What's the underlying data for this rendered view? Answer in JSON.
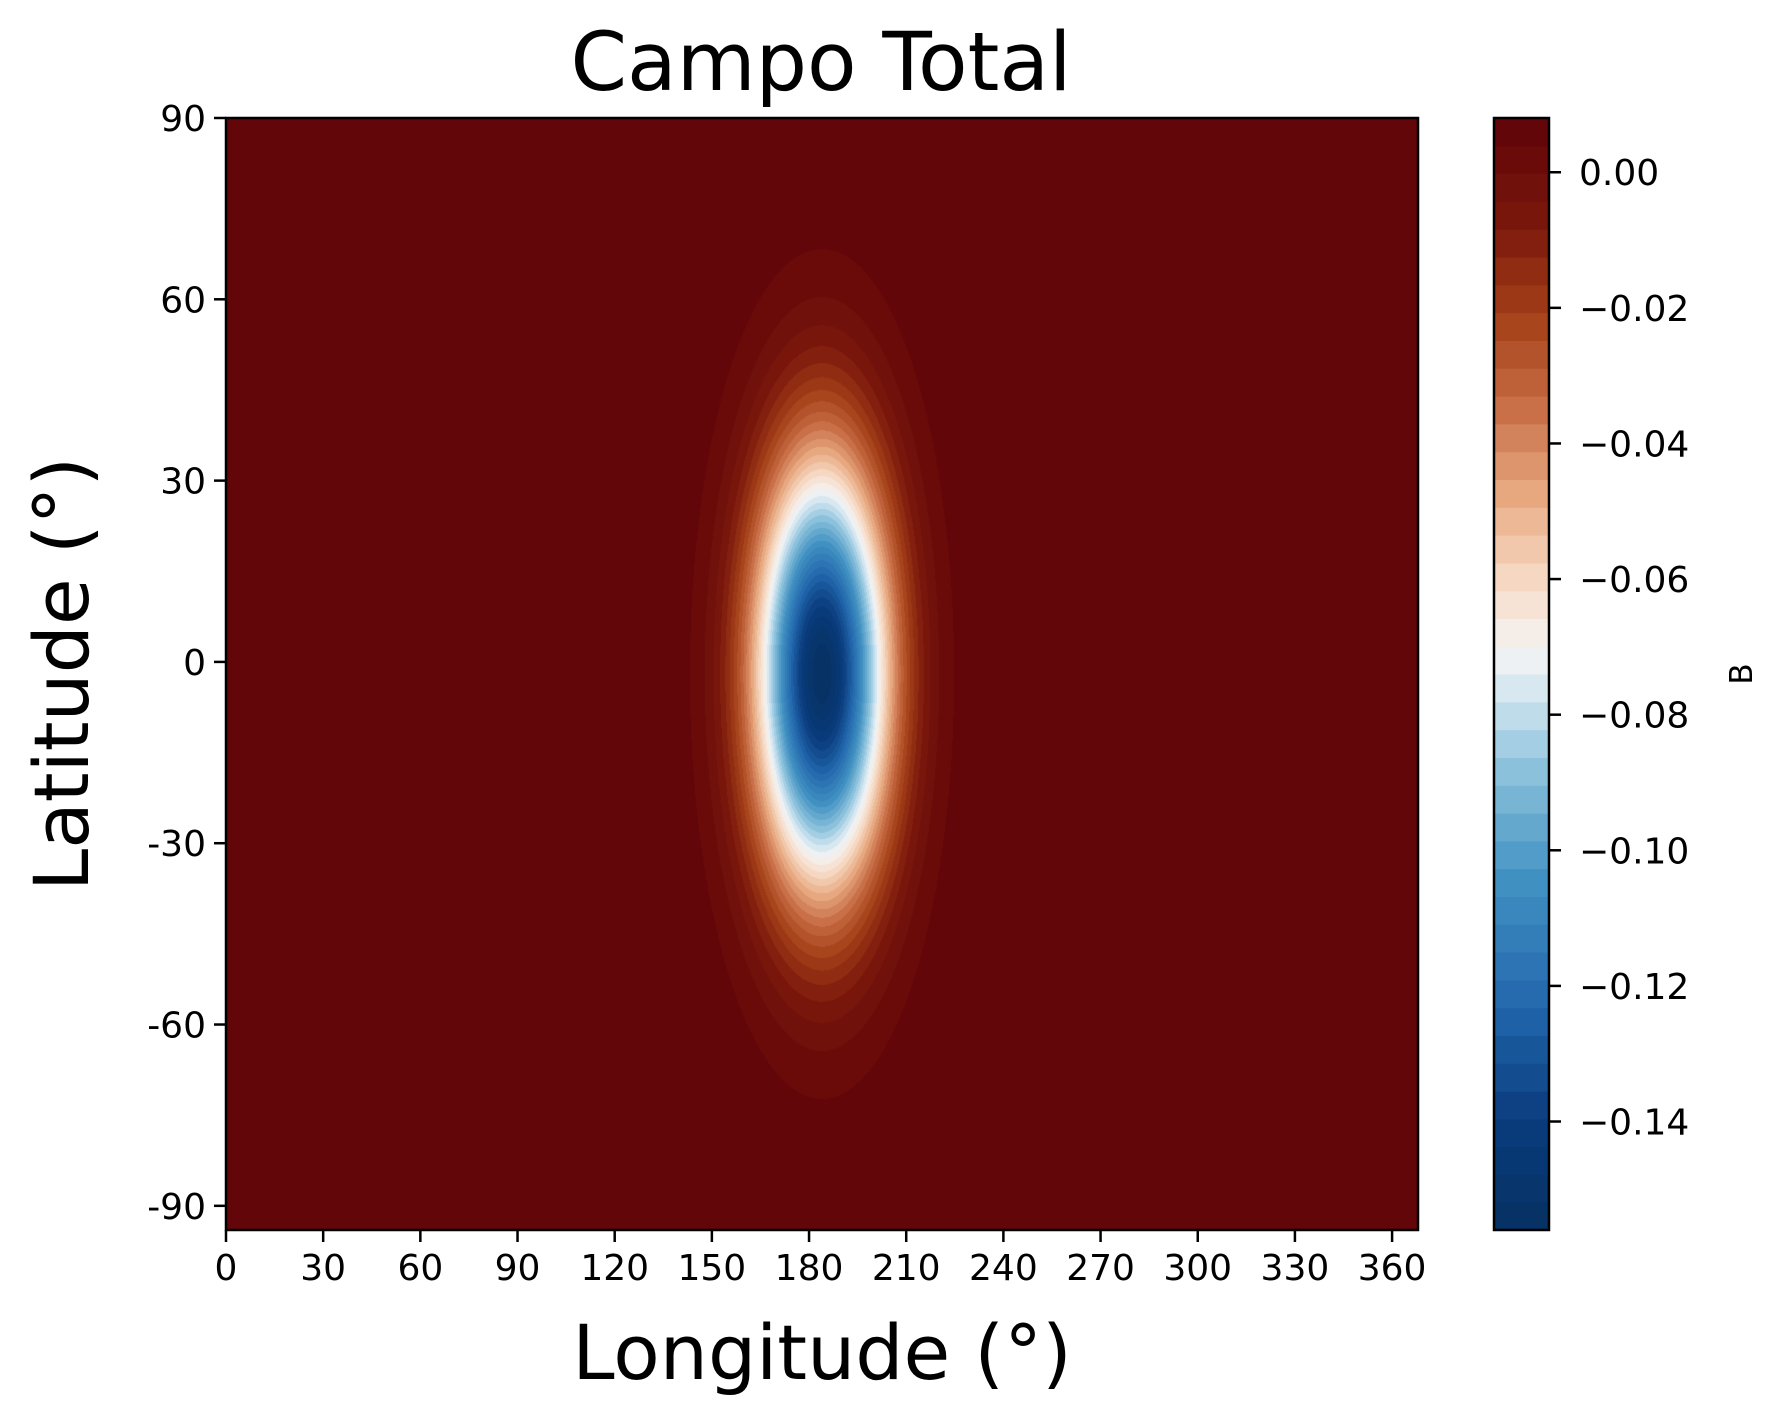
{
  "chart_data": {
    "type": "heatmap",
    "title": "Campo Total",
    "xlabel": "Longitude (°)",
    "ylabel": "Latitude (°)",
    "xlim": [
      0,
      368
    ],
    "ylim": [
      -94,
      90
    ],
    "xticks": [
      0,
      30,
      60,
      90,
      120,
      150,
      180,
      210,
      240,
      270,
      300,
      330,
      360
    ],
    "xtick_labels": [
      "0",
      "30",
      "60",
      "90",
      "120",
      "150",
      "180",
      "210",
      "240",
      "270",
      "300",
      "330",
      "360"
    ],
    "yticks": [
      90,
      60,
      30,
      0,
      -30,
      -60,
      -90
    ],
    "ytick_labels": [
      "90",
      "60",
      "30",
      "0",
      "-30",
      "-60",
      "-90"
    ],
    "colorbar": {
      "label": "B",
      "range": [
        -0.156,
        0.008
      ],
      "ticks": [
        0.0,
        -0.02,
        -0.04,
        -0.06,
        -0.08,
        -0.1,
        -0.12,
        -0.14
      ],
      "tick_labels": [
        "0.00",
        "−0.02",
        "−0.04",
        "−0.06",
        "−0.08",
        "−0.10",
        "−0.12",
        "−0.14"
      ],
      "levels": 40,
      "colormap": "RdBu_r-like (dark blue at minimum, white near -0.075, dark red at maximum)"
    },
    "field": {
      "description": "Negative anomaly centred near longitude 184, latitude -2, elliptical, elongated in latitude",
      "min": {
        "lon": 184,
        "lat": -2,
        "value": -0.155
      },
      "background_value": 0.007,
      "secondary": [
        {
          "lon": 0,
          "lat": -2,
          "value": 0.005
        },
        {
          "lon": 368,
          "lat": -2,
          "value": 0.005
        }
      ]
    },
    "grid": false,
    "colors": {
      "darkest_red": "#5e0309",
      "white": "#f7f7f7",
      "darkest_blue": "#03204c"
    }
  }
}
